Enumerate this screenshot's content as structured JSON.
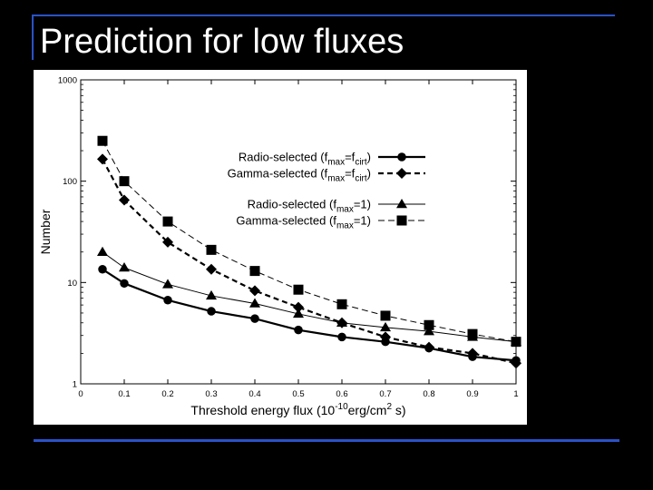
{
  "slide": {
    "title": "Prediction for low fluxes",
    "accent_color": "#2a52c8"
  },
  "chart_data": {
    "type": "line",
    "title": "",
    "xlabel": "Threshold energy flux (10^-10 erg/cm^2 s)",
    "ylabel": "Number",
    "xlim": [
      0,
      1
    ],
    "ylim": [
      1,
      1000
    ],
    "y_scale": "log",
    "grid": false,
    "legend_position": "top-right",
    "x_ticks": [
      "0",
      "0.1",
      "0.2",
      "0.3",
      "0.4",
      "0.5",
      "0.6",
      "0.7",
      "0.8",
      "0.9",
      "1"
    ],
    "y_ticks": [
      "1",
      "10",
      "100",
      "1000"
    ],
    "x": [
      0.05,
      0.1,
      0.2,
      0.3,
      0.4,
      0.5,
      0.6,
      0.7,
      0.8,
      0.9,
      1.0
    ],
    "series": [
      {
        "name": "Radio-selected (fmax=fcirt)",
        "legend_parts": [
          "Radio-selected (f",
          "max",
          "=f",
          "cirt",
          ")"
        ],
        "marker": "circle",
        "line": "solid-bold",
        "values": [
          13.5,
          9.8,
          6.7,
          5.2,
          4.4,
          3.4,
          2.9,
          2.6,
          2.25,
          1.85,
          1.7
        ]
      },
      {
        "name": "Gamma-selected (fmax=fcirt)",
        "legend_parts": [
          "Gamma-selected (f",
          "max",
          "=f",
          "cirt",
          ")"
        ],
        "marker": "diamond",
        "line": "dashed-bold",
        "values": [
          165,
          65,
          25,
          13.5,
          8.3,
          5.7,
          4.0,
          2.9,
          2.3,
          2.0,
          1.6
        ]
      },
      {
        "name": "Radio-selected (fmax=1)",
        "legend_parts": [
          "Radio-selected (f",
          "max",
          "=1)"
        ],
        "marker": "triangle",
        "line": "solid-thin",
        "values": [
          20,
          14,
          9.6,
          7.4,
          6.2,
          4.9,
          4.0,
          3.6,
          3.3,
          2.9,
          2.6
        ]
      },
      {
        "name": "Gamma-selected (fmax=1)",
        "legend_parts": [
          "Gamma-selected (f",
          "max",
          "=1)"
        ],
        "marker": "square",
        "line": "dashed-thin",
        "values": [
          250,
          100,
          40,
          21,
          13,
          8.5,
          6.1,
          4.7,
          3.8,
          3.1,
          2.6
        ]
      }
    ]
  }
}
